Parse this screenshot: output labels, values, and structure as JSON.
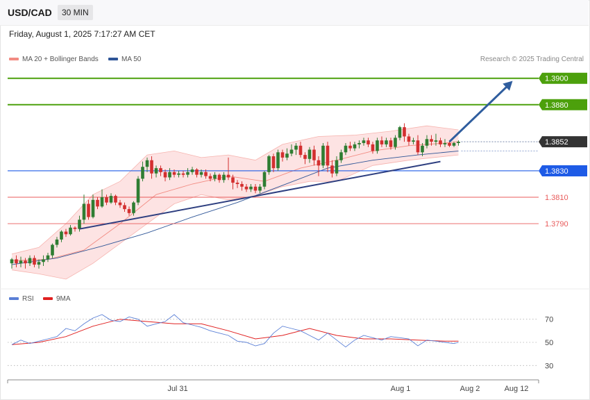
{
  "header": {
    "symbol": "USD/CAD",
    "timeframe": "30 MIN"
  },
  "datetime": "Friday, August 1, 2025 7:17:27 AM CET",
  "legend": {
    "bollinger": "MA 20 + Bollinger Bands",
    "ma50": "MA 50",
    "credit": "Research © 2025 Trading Central",
    "rsi": "RSI",
    "rsi_ma": "9MA"
  },
  "colors": {
    "up": "#2f7d32",
    "down": "#d32f2f",
    "bollinger": "#f28b82",
    "band_fill": "#fde3e3",
    "ma50": "#2e5597",
    "trend": "#2e3f80",
    "target_green": "#4ca00c",
    "support_blue": "#1e5be6",
    "resistance_red": "#e85a5a",
    "current_box": "#333333",
    "rsi": "#5a7fd6",
    "rsi_ma": "#e02020"
  },
  "chart_data": {
    "type": "candlestick",
    "symbol": "USD/CAD",
    "timeframe": "30 MIN",
    "ylim": [
      1.3748,
      1.3913
    ],
    "price_levels": [
      {
        "label": "1.3900",
        "value": 1.39,
        "kind": "target"
      },
      {
        "label": "1.3880",
        "value": 1.388,
        "kind": "target"
      },
      {
        "label": "1.3852",
        "value": 1.3852,
        "kind": "current"
      },
      {
        "label": "1.3830",
        "value": 1.383,
        "kind": "support"
      },
      {
        "label": "1.3810",
        "value": 1.381,
        "kind": "level"
      },
      {
        "label": "1.3790",
        "value": 1.379,
        "kind": "level"
      }
    ],
    "x_ticks": [
      "Jul 31",
      "Aug 1",
      "Aug 2",
      "Aug 12"
    ],
    "candles": [
      [
        1.376,
        1.3763,
        1.3756,
        1.3764
      ],
      [
        1.3763,
        1.376,
        1.3757,
        1.3766
      ],
      [
        1.376,
        1.3762,
        1.3757,
        1.3765
      ],
      [
        1.3762,
        1.376,
        1.3756,
        1.3764
      ],
      [
        1.376,
        1.3764,
        1.3758,
        1.3766
      ],
      [
        1.3764,
        1.3759,
        1.3757,
        1.3766
      ],
      [
        1.3759,
        1.3761,
        1.3756,
        1.3763
      ],
      [
        1.3761,
        1.3763,
        1.3758,
        1.3766
      ],
      [
        1.3763,
        1.3766,
        1.3761,
        1.3768
      ],
      [
        1.3766,
        1.3774,
        1.3764,
        1.3775
      ],
      [
        1.3774,
        1.3778,
        1.3772,
        1.378
      ],
      [
        1.3778,
        1.3784,
        1.3776,
        1.3785
      ],
      [
        1.3784,
        1.3782,
        1.378,
        1.3786
      ],
      [
        1.3782,
        1.3787,
        1.3781,
        1.3789
      ],
      [
        1.3787,
        1.3786,
        1.3784,
        1.3788
      ],
      [
        1.3786,
        1.3793,
        1.3784,
        1.3796
      ],
      [
        1.3793,
        1.3805,
        1.379,
        1.3812
      ],
      [
        1.3805,
        1.3795,
        1.3793,
        1.3808
      ],
      [
        1.3795,
        1.3808,
        1.3794,
        1.3812
      ],
      [
        1.3808,
        1.3803,
        1.3801,
        1.381
      ],
      [
        1.3803,
        1.381,
        1.3802,
        1.3816
      ],
      [
        1.381,
        1.3806,
        1.3804,
        1.3812
      ],
      [
        1.3806,
        1.3811,
        1.3805,
        1.3813
      ],
      [
        1.3811,
        1.3806,
        1.3804,
        1.3812
      ],
      [
        1.3806,
        1.3804,
        1.3802,
        1.3808
      ],
      [
        1.3804,
        1.3801,
        1.3799,
        1.3806
      ],
      [
        1.3801,
        1.3798,
        1.3796,
        1.3803
      ],
      [
        1.3798,
        1.3806,
        1.3796,
        1.3807
      ],
      [
        1.3806,
        1.3824,
        1.3804,
        1.3826
      ],
      [
        1.3824,
        1.3833,
        1.3822,
        1.3837
      ],
      [
        1.3833,
        1.3838,
        1.3829,
        1.384
      ],
      [
        1.3838,
        1.3828,
        1.3824,
        1.3841
      ],
      [
        1.3828,
        1.3832,
        1.3825,
        1.3834
      ],
      [
        1.3832,
        1.3829,
        1.3826,
        1.3834
      ],
      [
        1.3829,
        1.3825,
        1.3822,
        1.3831
      ],
      [
        1.3825,
        1.3829,
        1.3823,
        1.3832
      ],
      [
        1.3829,
        1.3827,
        1.3825,
        1.3831
      ],
      [
        1.3827,
        1.3828,
        1.3825,
        1.383
      ],
      [
        1.3828,
        1.3827,
        1.3825,
        1.383
      ],
      [
        1.3827,
        1.3829,
        1.3825,
        1.3832
      ],
      [
        1.3829,
        1.3831,
        1.3827,
        1.3833
      ],
      [
        1.3831,
        1.3827,
        1.3825,
        1.3832
      ],
      [
        1.3827,
        1.3829,
        1.3825,
        1.3831
      ],
      [
        1.3829,
        1.3826,
        1.3824,
        1.3831
      ],
      [
        1.3826,
        1.3824,
        1.3822,
        1.3828
      ],
      [
        1.3824,
        1.3827,
        1.3822,
        1.3829
      ],
      [
        1.3827,
        1.3823,
        1.3821,
        1.3828
      ],
      [
        1.3823,
        1.3827,
        1.3821,
        1.3829
      ],
      [
        1.3827,
        1.3825,
        1.3823,
        1.384
      ],
      [
        1.3825,
        1.3821,
        1.3816,
        1.3827
      ],
      [
        1.3821,
        1.382,
        1.3817,
        1.3823
      ],
      [
        1.382,
        1.3818,
        1.3815,
        1.3822
      ],
      [
        1.3818,
        1.3816,
        1.3814,
        1.382
      ],
      [
        1.3816,
        1.3818,
        1.3814,
        1.382
      ],
      [
        1.3818,
        1.3815,
        1.3813,
        1.382
      ],
      [
        1.3815,
        1.3818,
        1.3813,
        1.382
      ],
      [
        1.3818,
        1.3829,
        1.3816,
        1.383
      ],
      [
        1.3829,
        1.3841,
        1.3827,
        1.3842
      ],
      [
        1.3841,
        1.3832,
        1.3829,
        1.3843
      ],
      [
        1.3832,
        1.3844,
        1.383,
        1.3846
      ],
      [
        1.3844,
        1.384,
        1.3837,
        1.3846
      ],
      [
        1.384,
        1.3843,
        1.3838,
        1.3847
      ],
      [
        1.3843,
        1.3846,
        1.3841,
        1.385
      ],
      [
        1.3846,
        1.3849,
        1.3842,
        1.3851
      ],
      [
        1.3849,
        1.3842,
        1.384,
        1.3852
      ],
      [
        1.3842,
        1.3839,
        1.3835,
        1.3844
      ],
      [
        1.3839,
        1.3846,
        1.3836,
        1.3848
      ],
      [
        1.3846,
        1.3838,
        1.3834,
        1.3849
      ],
      [
        1.3838,
        1.3834,
        1.3826,
        1.3841
      ],
      [
        1.3834,
        1.3849,
        1.3832,
        1.3851
      ],
      [
        1.3849,
        1.3834,
        1.3829,
        1.3852
      ],
      [
        1.3834,
        1.3828,
        1.3825,
        1.3838
      ],
      [
        1.3828,
        1.3838,
        1.3826,
        1.3841
      ],
      [
        1.3838,
        1.3844,
        1.3836,
        1.3846
      ],
      [
        1.3844,
        1.3849,
        1.3842,
        1.3851
      ],
      [
        1.3849,
        1.3847,
        1.3845,
        1.3852
      ],
      [
        1.3847,
        1.385,
        1.3845,
        1.3852
      ],
      [
        1.385,
        1.3851,
        1.3847,
        1.3853
      ],
      [
        1.3851,
        1.3853,
        1.3849,
        1.3855
      ],
      [
        1.3853,
        1.385,
        1.3848,
        1.3855
      ],
      [
        1.385,
        1.3845,
        1.3843,
        1.3852
      ],
      [
        1.3845,
        1.3853,
        1.3843,
        1.3855
      ],
      [
        1.3853,
        1.385,
        1.3848,
        1.3856
      ],
      [
        1.385,
        1.3853,
        1.3848,
        1.3855
      ],
      [
        1.3853,
        1.3848,
        1.3846,
        1.3855
      ],
      [
        1.3848,
        1.3855,
        1.3846,
        1.3857
      ],
      [
        1.3855,
        1.3863,
        1.3853,
        1.3864
      ],
      [
        1.3863,
        1.3856,
        1.3852,
        1.3866
      ],
      [
        1.3856,
        1.3852,
        1.3849,
        1.3858
      ],
      [
        1.3852,
        1.3853,
        1.385,
        1.3855
      ],
      [
        1.3853,
        1.3844,
        1.3842,
        1.3857
      ],
      [
        1.3844,
        1.3849,
        1.3841,
        1.3851
      ],
      [
        1.3849,
        1.3854,
        1.3847,
        1.3857
      ],
      [
        1.3854,
        1.3852,
        1.3849,
        1.3857
      ],
      [
        1.3852,
        1.3853,
        1.3849,
        1.3858
      ],
      [
        1.3853,
        1.385,
        1.3848,
        1.3855
      ],
      [
        1.385,
        1.3851,
        1.3848,
        1.3854
      ],
      [
        1.3851,
        1.3849,
        1.3848,
        1.3853
      ],
      [
        1.3849,
        1.3851,
        1.3848,
        1.3852
      ],
      [
        1.3851,
        1.3852,
        1.3849,
        1.3853
      ]
    ],
    "bollinger_mid": [
      [
        0,
        1.3762
      ],
      [
        8,
        1.3763
      ],
      [
        16,
        1.377
      ],
      [
        24,
        1.379
      ],
      [
        32,
        1.3812
      ],
      [
        40,
        1.382
      ],
      [
        48,
        1.3826
      ],
      [
        56,
        1.3822
      ],
      [
        64,
        1.3832
      ],
      [
        72,
        1.3838
      ],
      [
        80,
        1.3845
      ],
      [
        88,
        1.3849
      ],
      [
        96,
        1.3851
      ],
      [
        99,
        1.3852
      ]
    ],
    "bollinger_upper": [
      [
        0,
        1.3767
      ],
      [
        6,
        1.3772
      ],
      [
        12,
        1.379
      ],
      [
        18,
        1.3812
      ],
      [
        24,
        1.3822
      ],
      [
        30,
        1.3842
      ],
      [
        36,
        1.3845
      ],
      [
        42,
        1.384
      ],
      [
        48,
        1.3842
      ],
      [
        54,
        1.3838
      ],
      [
        60,
        1.385
      ],
      [
        68,
        1.3856
      ],
      [
        76,
        1.3857
      ],
      [
        84,
        1.386
      ],
      [
        92,
        1.3864
      ],
      [
        99,
        1.3861
      ]
    ],
    "bollinger_lower": [
      [
        0,
        1.3755
      ],
      [
        6,
        1.3752
      ],
      [
        12,
        1.3748
      ],
      [
        18,
        1.376
      ],
      [
        24,
        1.3775
      ],
      [
        30,
        1.379
      ],
      [
        36,
        1.3805
      ],
      [
        42,
        1.3812
      ],
      [
        48,
        1.3808
      ],
      [
        54,
        1.3811
      ],
      [
        60,
        1.3818
      ],
      [
        66,
        1.3822
      ],
      [
        72,
        1.3822
      ],
      [
        80,
        1.3834
      ],
      [
        88,
        1.3838
      ],
      [
        99,
        1.3842
      ]
    ],
    "ma50": [
      [
        0,
        1.3759
      ],
      [
        10,
        1.3764
      ],
      [
        20,
        1.3773
      ],
      [
        30,
        1.3783
      ],
      [
        40,
        1.3795
      ],
      [
        50,
        1.3806
      ],
      [
        60,
        1.3819
      ],
      [
        70,
        1.3832
      ],
      [
        80,
        1.3838
      ],
      [
        90,
        1.3842
      ],
      [
        99,
        1.3845
      ]
    ],
    "trendline": [
      [
        15,
        1.3786
      ],
      [
        95,
        1.3837
      ]
    ],
    "arrow": [
      [
        97,
        1.3852
      ],
      [
        111,
        1.3898
      ]
    ],
    "rsi": {
      "levels": [
        70,
        50,
        30
      ],
      "ylim": [
        20,
        80
      ],
      "rsi": [
        [
          0,
          48
        ],
        [
          2,
          52
        ],
        [
          4,
          49
        ],
        [
          6,
          51
        ],
        [
          8,
          53
        ],
        [
          10,
          55
        ],
        [
          12,
          62
        ],
        [
          14,
          60
        ],
        [
          16,
          66
        ],
        [
          18,
          71
        ],
        [
          20,
          74
        ],
        [
          22,
          69
        ],
        [
          24,
          68
        ],
        [
          26,
          72
        ],
        [
          28,
          70
        ],
        [
          30,
          64
        ],
        [
          32,
          66
        ],
        [
          34,
          68
        ],
        [
          36,
          74
        ],
        [
          38,
          67
        ],
        [
          40,
          65
        ],
        [
          42,
          63
        ],
        [
          44,
          60
        ],
        [
          46,
          58
        ],
        [
          48,
          56
        ],
        [
          50,
          51
        ],
        [
          52,
          50
        ],
        [
          54,
          47
        ],
        [
          56,
          49
        ],
        [
          58,
          58
        ],
        [
          60,
          64
        ],
        [
          62,
          62
        ],
        [
          64,
          60
        ],
        [
          66,
          56
        ],
        [
          68,
          52
        ],
        [
          70,
          58
        ],
        [
          72,
          52
        ],
        [
          74,
          46
        ],
        [
          76,
          52
        ],
        [
          78,
          56
        ],
        [
          80,
          54
        ],
        [
          82,
          52
        ],
        [
          84,
          55
        ],
        [
          86,
          54
        ],
        [
          88,
          53
        ],
        [
          90,
          47
        ],
        [
          92,
          52
        ],
        [
          94,
          51
        ],
        [
          96,
          50
        ],
        [
          98,
          49
        ],
        [
          99,
          50
        ]
      ],
      "ma9": [
        [
          0,
          48
        ],
        [
          6,
          50
        ],
        [
          12,
          55
        ],
        [
          18,
          64
        ],
        [
          24,
          70
        ],
        [
          30,
          68
        ],
        [
          36,
          66
        ],
        [
          42,
          66
        ],
        [
          48,
          60
        ],
        [
          54,
          53
        ],
        [
          60,
          56
        ],
        [
          66,
          62
        ],
        [
          72,
          56
        ],
        [
          78,
          53
        ],
        [
          84,
          53
        ],
        [
          90,
          52
        ],
        [
          96,
          51
        ],
        [
          99,
          51
        ]
      ]
    }
  }
}
